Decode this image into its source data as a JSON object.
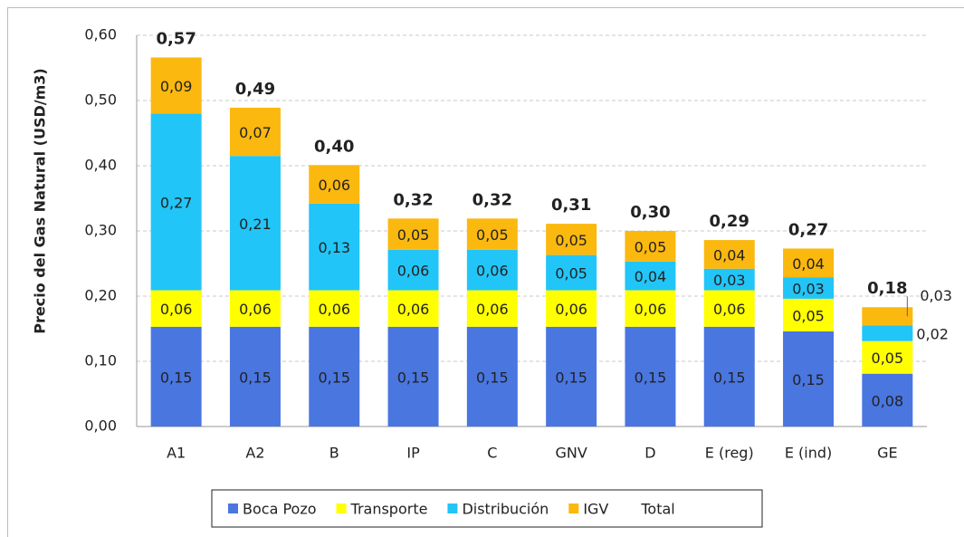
{
  "chart_data": {
    "type": "stacked_bar",
    "y_label": "Precio del Gas Natural (USD/m3)",
    "categories": [
      "A1",
      "A2",
      "B",
      "IP",
      "C",
      "GNV",
      "D",
      "E (reg)",
      "E (ind)",
      "GE"
    ],
    "ylim": [
      0,
      0.6
    ],
    "yticks": [
      {
        "value": 0,
        "label": "0,00"
      },
      {
        "value": 0.1,
        "label": "0,10"
      },
      {
        "value": 0.2,
        "label": "0,20"
      },
      {
        "value": 0.3,
        "label": "0,30"
      },
      {
        "value": 0.4,
        "label": "0,40"
      },
      {
        "value": 0.5,
        "label": "0,50"
      },
      {
        "value": 0.6,
        "label": "0,60"
      }
    ],
    "grid": true,
    "series": [
      {
        "name": "Boca Pozo",
        "color": "#4a76e0",
        "values": [
          0.153,
          0.153,
          0.153,
          0.153,
          0.153,
          0.153,
          0.153,
          0.153,
          0.146,
          0.081
        ],
        "value_labels": [
          "0,15",
          "0,15",
          "0,15",
          "0,15",
          "0,15",
          "0,15",
          "0,15",
          "0,15",
          "0,15",
          "0,08"
        ]
      },
      {
        "name": "Transporte",
        "color": "#ffff00",
        "values": [
          0.056,
          0.056,
          0.056,
          0.056,
          0.056,
          0.056,
          0.056,
          0.056,
          0.05,
          0.05
        ],
        "value_labels": [
          "0,06",
          "0,06",
          "0,06",
          "0,06",
          "0,06",
          "0,06",
          "0,06",
          "0,06",
          "0,05",
          "0,05"
        ]
      },
      {
        "name": "Distribución",
        "color": "#22c5f7",
        "values": [
          0.271,
          0.206,
          0.133,
          0.062,
          0.062,
          0.054,
          0.044,
          0.033,
          0.033,
          0.024
        ],
        "value_labels": [
          "0,27",
          "0,21",
          "0,13",
          "0,06",
          "0,06",
          "0,05",
          "0,04",
          "0,03",
          "0,03",
          "0,02"
        ]
      },
      {
        "name": "IGV",
        "color": "#fbb80f",
        "values": [
          0.086,
          0.074,
          0.059,
          0.048,
          0.048,
          0.048,
          0.047,
          0.044,
          0.044,
          0.028
        ],
        "value_labels": [
          "0,09",
          "0,07",
          "0,06",
          "0,05",
          "0,05",
          "0,05",
          "0,05",
          "0,04",
          "0,04",
          "0,03"
        ]
      },
      {
        "name": "Total",
        "color": null,
        "values": [
          0.566,
          0.489,
          0.401,
          0.319,
          0.319,
          0.311,
          0.3,
          0.286,
          0.273,
          0.183
        ],
        "value_labels": [
          "0,57",
          "0,49",
          "0,40",
          "0,32",
          "0,32",
          "0,31",
          "0,30",
          "0,29",
          "0,27",
          "0,18"
        ]
      }
    ],
    "legend": "bottom"
  }
}
